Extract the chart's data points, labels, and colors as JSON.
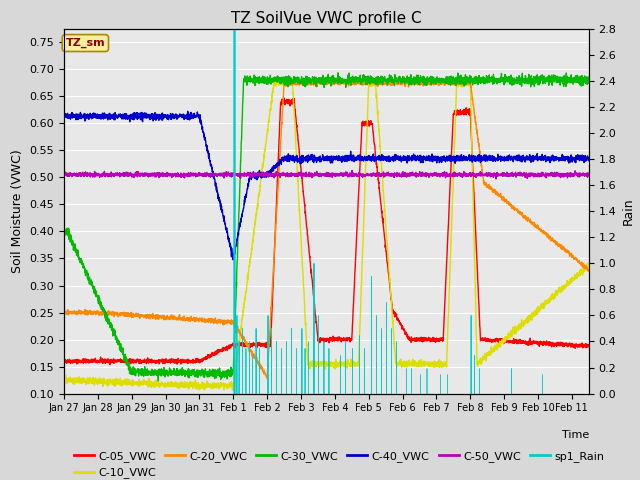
{
  "title": "TZ SoilVue VWC profile C",
  "xlabel": "Time",
  "ylabel_left": "Soil Moisture (VWC)",
  "ylabel_right": "Rain",
  "ylim_left": [
    0.1,
    0.775
  ],
  "ylim_right": [
    0.0,
    2.8
  ],
  "annotation_box": "TZ_sm",
  "series_colors": {
    "C-05_VWC": "#ff0000",
    "C-10_VWC": "#dddd00",
    "C-20_VWC": "#ff8800",
    "C-30_VWC": "#00bb00",
    "C-40_VWC": "#0000cc",
    "C-50_VWC": "#bb00bb",
    "sp1_Rain": "#00cccc"
  },
  "figure_facecolor": "#d8d8d8",
  "plot_facecolor": "#e8e8e8",
  "grid_color": "#ffffff",
  "linewidth": 1.0,
  "rain_linewidth": 0.5,
  "tick_labels": [
    "Jan 27",
    "Jan 28",
    "Jan 29",
    "Jan 30",
    "Jan 31",
    "Feb 1",
    "Feb 2",
    "Feb 3",
    "Feb 4",
    "Feb 5",
    "Feb 6",
    "Feb 7",
    "Feb 8",
    "Feb 9",
    "Feb 10",
    "Feb 11"
  ],
  "legend_labels": [
    "C-05_VWC",
    "C-10_VWC",
    "C-20_VWC",
    "C-30_VWC",
    "C-40_VWC",
    "C-50_VWC",
    "sp1_Rain"
  ]
}
